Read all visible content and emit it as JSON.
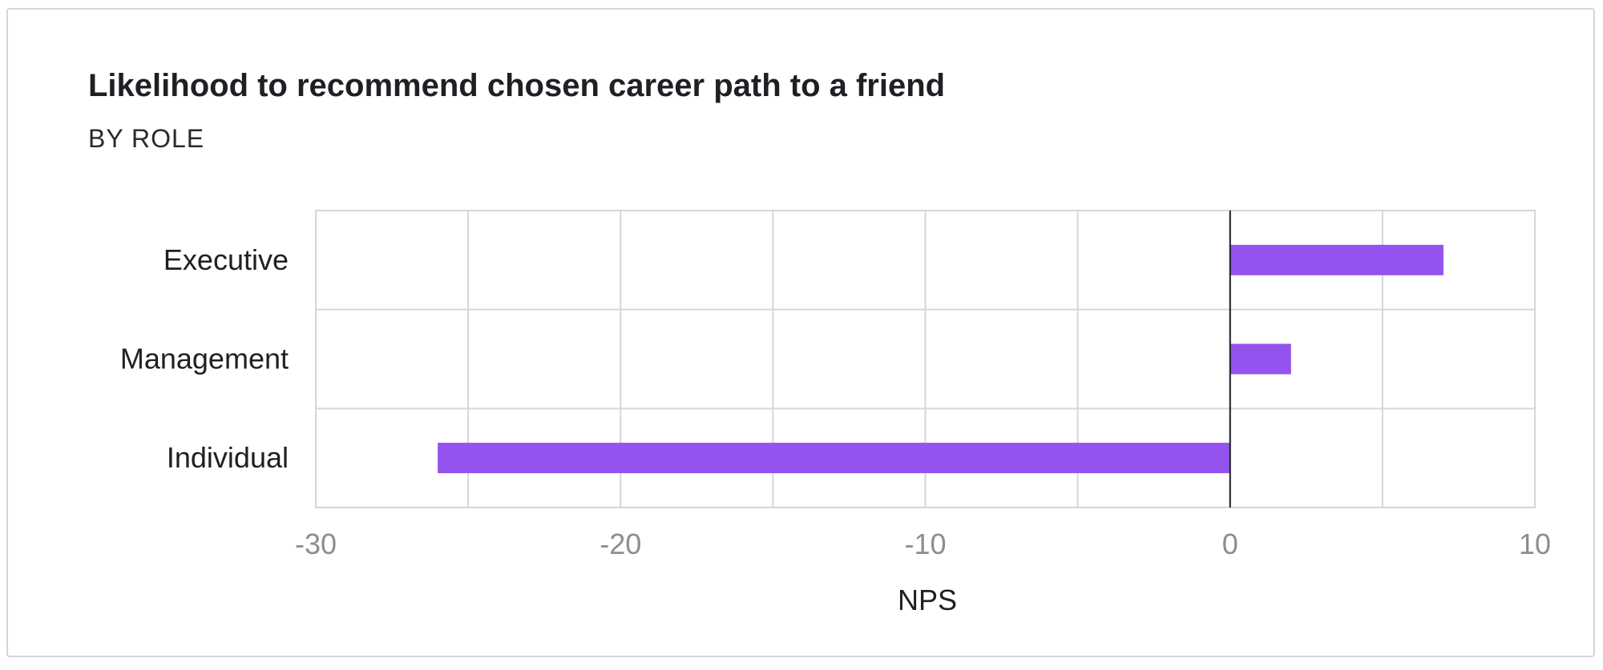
{
  "chart_data": {
    "type": "bar",
    "orientation": "horizontal",
    "title": "Likelihood to recommend chosen career path to a friend",
    "subtitle": "BY ROLE",
    "categories": [
      "Executive",
      "Management",
      "Individual"
    ],
    "values": [
      7,
      2,
      -26
    ],
    "xlabel": "NPS",
    "ylabel": "",
    "xlim": [
      -30,
      10
    ],
    "xticks": [
      -30,
      -20,
      -10,
      0,
      10
    ],
    "xtick_labels": [
      "-30",
      "-20",
      "-10",
      "0",
      "10"
    ],
    "minor_grid_step": 5,
    "grid": true,
    "legend": "none",
    "bar_color": "#9452ee",
    "grid_color": "#d3d6db",
    "zero_line_color": "#1f1f24"
  }
}
